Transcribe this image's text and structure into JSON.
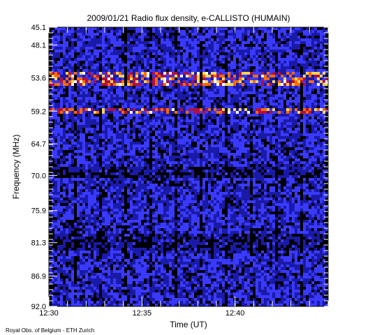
{
  "chart_data": {
    "type": "heatmap",
    "title": "2009/01/21  Radio flux density, e-CALLISTO (HUMAIN)",
    "xlabel": "Time (UT)",
    "ylabel": "Frequency (MHz)",
    "x_range": [
      "12:30",
      "12:45"
    ],
    "y_range_mhz": [
      45.1,
      92.0
    ],
    "y_axis_inverted": true,
    "x_ticks": [
      "12:30",
      "12:35",
      "12:40"
    ],
    "y_ticks": [
      "45.1",
      "48.1",
      "53.6",
      "59.2",
      "64.7",
      "70.0",
      "75.9",
      "81.3",
      "86.9",
      "92.0"
    ],
    "colormap": [
      "#000000",
      "#1a1aa8",
      "#3a3aff",
      "#b01040",
      "#ff6a00",
      "#ffd54a",
      "#ffffff"
    ],
    "bright_bands_mhz": [
      [
        52.5,
        55.0
      ],
      [
        58.6,
        59.5
      ]
    ],
    "dark_bands_mhz": [
      [
        68.5,
        70.5
      ],
      [
        79.8,
        82.5
      ]
    ],
    "grid": false,
    "legend": "none"
  },
  "footer": {
    "credit": "Royal Obs. of Belgium - ETH Zurich"
  }
}
